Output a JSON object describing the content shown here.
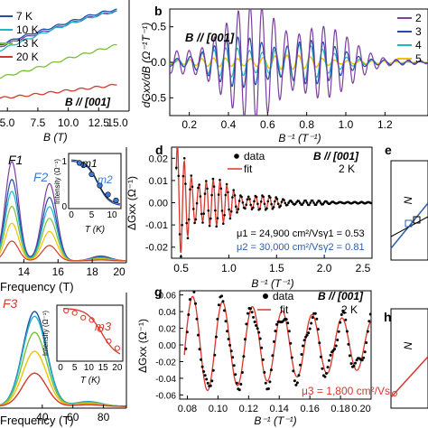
{
  "panel_letters": [
    "b",
    "d",
    "e",
    "g",
    "h"
  ],
  "chart_data": [
    {
      "id": "a",
      "type": "line",
      "xlabel": "B (T)",
      "xticks": [
        "5.0",
        "7.5",
        "10.0",
        "12.5",
        "15.0"
      ],
      "xlim": [
        3.5,
        15.0
      ],
      "annotation": "B // [001]",
      "series": [
        {
          "name": "7 K",
          "color": "#1f4ea8",
          "x": [
            3.5,
            6,
            8,
            10,
            12,
            14
          ],
          "y": [
            0.58,
            0.7,
            0.78,
            0.86,
            0.94,
            1.0
          ]
        },
        {
          "name": "10 K",
          "color": "#22b5c9",
          "x": [
            3.5,
            6,
            8,
            10,
            12,
            14
          ],
          "y": [
            0.52,
            0.65,
            0.75,
            0.84,
            0.92,
            0.98
          ]
        },
        {
          "name": "13 K",
          "color": "#7cbf3a",
          "x": [
            3.5,
            6,
            8,
            10,
            12,
            14
          ],
          "y": [
            0.25,
            0.33,
            0.4,
            0.48,
            0.55,
            0.62
          ]
        },
        {
          "name": "20 K",
          "color": "#d23a2a",
          "x": [
            3.5,
            6,
            8,
            10,
            12,
            14
          ],
          "y": [
            0.05,
            0.08,
            0.11,
            0.14,
            0.17,
            0.2
          ]
        }
      ]
    },
    {
      "id": "b",
      "type": "line",
      "ylabel": "dGxx/dB (Ω⁻¹T⁻¹)",
      "xlabel": "B⁻¹ (T⁻¹)",
      "xticks": [
        "0.2",
        "0.4",
        "0.6",
        "0.8",
        "1.0",
        "1.2"
      ],
      "yticks": [
        "0.5",
        "0.0",
        "-0.5"
      ],
      "xlim": [
        0.1,
        1.42
      ],
      "ylim": [
        -0.75,
        0.75
      ],
      "annotation": "B // [001]",
      "legend": [
        "2",
        "3",
        "4",
        "5"
      ],
      "legend_colors": [
        "#7b3fa0",
        "#1f4ea8",
        "#22b5c9",
        "#f2c200"
      ]
    },
    {
      "id": "c_left",
      "type": "line",
      "xlabel": "Frequency (T)",
      "xticks": [
        "14",
        "16",
        "18",
        "20"
      ],
      "xlim": [
        12.5,
        20
      ],
      "peak_labels": [
        "F1",
        "F2"
      ],
      "inset": {
        "ylabel": "Intensity (Ω⁻¹)",
        "xlabel": "T (K)",
        "xticks": [
          "0",
          "5",
          "10"
        ],
        "yticks": [
          "0",
          "1"
        ],
        "series_labels": [
          "m1",
          "m2"
        ],
        "points": [
          [
            2,
            0.95
          ],
          [
            3,
            0.9
          ],
          [
            5,
            0.7
          ],
          [
            7,
            0.45
          ],
          [
            9,
            0.25
          ],
          [
            11,
            0.12
          ]
        ]
      }
    },
    {
      "id": "d",
      "type": "line",
      "ylabel": "ΔGxx (Ω⁻¹)",
      "xlabel": "B⁻¹ (T⁻¹)",
      "xticks": [
        "0.5",
        "1.0",
        "1.5",
        "2.0",
        "2.5"
      ],
      "yticks": [
        "0.02",
        "0.01",
        "0.00",
        "-0.01",
        "-0.02"
      ],
      "xlim": [
        0.4,
        2.5
      ],
      "ylim": [
        -0.025,
        0.025
      ],
      "legend": [
        "data",
        "fit"
      ],
      "annotation_field": "B // [001]",
      "annotation_temp": "2 K",
      "fit_params": {
        "mu1": "μ1 = 24,900 cm²/Vs",
        "gamma1": "γ1 = 0.53",
        "mu2": "μ2 = 30,000 cm²/Vs",
        "gamma2": "γ2 = 0.81"
      }
    },
    {
      "id": "e",
      "type": "line",
      "ylabel": "N"
    },
    {
      "id": "f_left",
      "type": "line",
      "xlabel": "Frequency (T)",
      "xticks": [
        "40",
        "60",
        "80"
      ],
      "xlim": [
        10,
        95
      ],
      "peak_labels": [
        "F3"
      ],
      "inset": {
        "ylabel": "Intensity (Ω⁻¹)",
        "xlabel": "T (K)",
        "xticks": [
          "0",
          "5",
          "10",
          "15",
          "20"
        ],
        "series_labels": [
          "m3"
        ],
        "points": [
          [
            2,
            1.0
          ],
          [
            5,
            0.95
          ],
          [
            8,
            0.85
          ],
          [
            11,
            0.8
          ],
          [
            14,
            0.6
          ],
          [
            17,
            0.35
          ],
          [
            20,
            0.2
          ]
        ]
      }
    },
    {
      "id": "g",
      "type": "line",
      "ylabel": "ΔGxx (Ω⁻¹)",
      "xlabel": "B⁻¹ (T⁻¹)",
      "xticks": [
        "0.08",
        "0.10",
        "0.12",
        "0.14",
        "0.16",
        "0.18",
        "0.20"
      ],
      "yticks": [
        "0.06",
        "0.04",
        "0.02",
        "0.00",
        "-0.02",
        "-0.04",
        "-0.06"
      ],
      "xlim": [
        0.075,
        0.2
      ],
      "ylim": [
        -0.065,
        0.065
      ],
      "legend": [
        "data",
        "fit"
      ],
      "annotation_field": "B // [001]",
      "annotation_temp": "2 K",
      "fit_params": {
        "mu3": "μ3 = 1,800 cm²/Vs"
      }
    },
    {
      "id": "h",
      "type": "line",
      "ylabel": "N"
    }
  ]
}
